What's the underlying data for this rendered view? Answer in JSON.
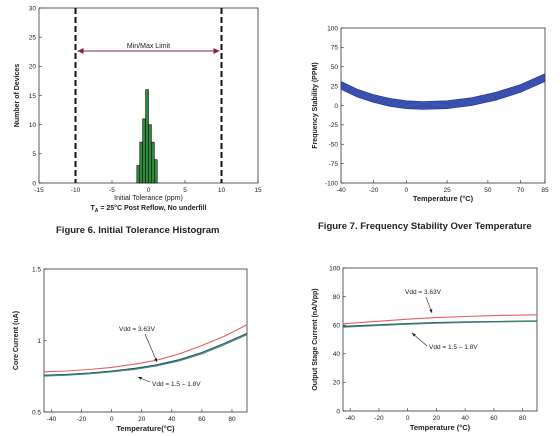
{
  "chart_data": [
    {
      "type": "bar",
      "title": "",
      "xlabel": "Initial Tolerance (ppm)",
      "subtitle": "T_A = 25°C Post Reflow, No underfill",
      "ylabel": "Number of Devices",
      "xlim": [
        -15,
        15
      ],
      "ylim": [
        0,
        30
      ],
      "xticks": [
        -15,
        -10,
        -5,
        0,
        5,
        10,
        15
      ],
      "yticks": [
        0,
        5,
        10,
        15,
        20,
        25,
        30
      ],
      "bins": [
        -1.6,
        -1.2,
        -0.8,
        -0.4,
        0,
        0.4,
        0.8
      ],
      "bin_width": 0.4,
      "values": [
        3,
        7,
        11,
        16,
        10,
        7,
        4
      ],
      "bar_color": "#2e8b3a",
      "limit_lines": [
        -10,
        10
      ],
      "annotation": "Min/Max Limit",
      "caption": "Figure 6. Initial Tolerance Histogram",
      "grid": false
    },
    {
      "type": "line",
      "title": "",
      "xlabel": "Temperature (°C)",
      "ylabel": "Frequency Stability (PPM)",
      "xlim": [
        -40,
        85
      ],
      "ylim": [
        -100,
        100
      ],
      "xticks": [
        -40,
        -20,
        0,
        25,
        50,
        70,
        85
      ],
      "yticks": [
        -100,
        -75,
        -50,
        -25,
        0,
        25,
        50,
        75,
        100
      ],
      "x": [
        -40,
        -30,
        -20,
        -10,
        0,
        10,
        25,
        40,
        55,
        70,
        85
      ],
      "band_center": [
        26,
        16,
        9,
        4,
        1,
        0,
        1,
        5,
        12,
        22,
        36
      ],
      "band_half_width": 5,
      "color": "#2b44b0",
      "caption": "Figure 7. Frequency Stability Over Temperature",
      "grid": false
    },
    {
      "type": "line",
      "title": "",
      "xlabel": "Temperature(°C)",
      "ylabel": "Core Current (uA)",
      "xlim": [
        -45,
        90
      ],
      "ylim": [
        0.5,
        1.5
      ],
      "xticks": [
        -40,
        -20,
        0,
        20,
        40,
        60,
        80
      ],
      "yticks": [
        0.5,
        1,
        1.5
      ],
      "x": [
        -45,
        -30,
        -15,
        0,
        15,
        30,
        45,
        60,
        75,
        90
      ],
      "series": [
        {
          "name": "Vdd = 3.63V",
          "color": "#e06060",
          "values": [
            0.781,
            0.787,
            0.797,
            0.812,
            0.834,
            0.862,
            0.906,
            0.965,
            1.03,
            1.11
          ]
        },
        {
          "name": "Vdd = 1.5 - 1.8V",
          "color": "#2d4f5c",
          "values": [
            0.757,
            0.763,
            0.773,
            0.787,
            0.805,
            0.83,
            0.866,
            0.916,
            0.98,
            1.05
          ]
        },
        {
          "name": "",
          "color": "#3a8a7a",
          "values": [
            0.751,
            0.757,
            0.767,
            0.781,
            0.798,
            0.823,
            0.858,
            0.907,
            0.971,
            1.041
          ]
        }
      ],
      "annotations": [
        {
          "text": "Vdd = 3.63V"
        },
        {
          "text": "Vdd = 1.5 – 1.8V"
        }
      ],
      "grid": false
    },
    {
      "type": "line",
      "title": "",
      "xlabel": "Temperature (°C)",
      "ylabel": "Output Stage Current (nA/Vpp)",
      "xlim": [
        -45,
        90
      ],
      "ylim": [
        0,
        100
      ],
      "xticks": [
        -40,
        -20,
        0,
        20,
        40,
        60,
        80
      ],
      "yticks": [
        0,
        20,
        40,
        60,
        80,
        100
      ],
      "x": [
        -45,
        -20,
        0,
        20,
        40,
        60,
        90
      ],
      "series": [
        {
          "name": "Vdd = 3.63V",
          "color": "#e06060",
          "values": [
            61,
            62.8,
            64.2,
            65.3,
            66.1,
            66.7,
            67.3
          ]
        },
        {
          "name": "Vdd = 1.5 - 1.8V",
          "color": "#2d4f5c",
          "values": [
            59.2,
            60.3,
            61.2,
            61.8,
            62.3,
            62.6,
            63
          ]
        },
        {
          "name": "",
          "color": "#3a8a7a",
          "values": [
            58.6,
            59.8,
            60.7,
            61.4,
            61.9,
            62.3,
            62.7
          ]
        }
      ],
      "annotations": [
        {
          "text": "Vdd = 3.63V"
        },
        {
          "text": "Vdd = 1.5 – 1.8V"
        }
      ],
      "grid": false
    }
  ]
}
